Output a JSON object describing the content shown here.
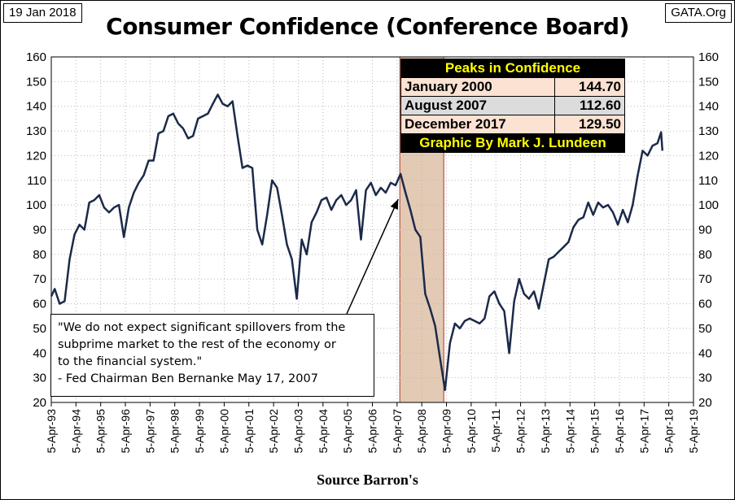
{
  "header": {
    "date": "19 Jan 2018",
    "source_site": "GATA.Org"
  },
  "source_note": "Source Barron's",
  "peaks": {
    "title": "Peaks in Confidence",
    "rows": [
      {
        "label": "January 2000",
        "value": "144.70"
      },
      {
        "label": "August 2007",
        "value": "112.60"
      },
      {
        "label": "December 2017",
        "value": "129.50"
      }
    ],
    "credit": "Graphic By Mark J. Lundeen"
  },
  "quote": {
    "lines": [
      "\"We do not expect significant spillovers from the",
      "subprime market to the rest of the economy or",
      "to the financial system.\""
    ],
    "attribution": "- Fed Chairman Ben Bernanke  May 17, 2007"
  },
  "colors": {
    "line": "#1b2a49",
    "highlight_fill": "#d8b89c",
    "highlight_border": "#b03a2e",
    "grid": "#b7b7b7"
  },
  "chart_data": {
    "type": "line",
    "title": "Consumer Confidence (Conference Board)",
    "xlabel": "",
    "ylabel": "",
    "ylim": [
      20,
      160
    ],
    "yticks": [
      20,
      30,
      40,
      50,
      60,
      70,
      80,
      90,
      100,
      110,
      120,
      130,
      140,
      150,
      160
    ],
    "xlim": [
      1993.26,
      2019.26
    ],
    "xtick_labels": [
      "5-Apr-93",
      "5-Apr-94",
      "5-Apr-95",
      "5-Apr-96",
      "5-Apr-97",
      "5-Apr-98",
      "5-Apr-99",
      "5-Apr-00",
      "5-Apr-01",
      "5-Apr-02",
      "5-Apr-03",
      "5-Apr-04",
      "5-Apr-05",
      "5-Apr-06",
      "5-Apr-07",
      "5-Apr-08",
      "5-Apr-09",
      "5-Apr-10",
      "5-Apr-11",
      "5-Apr-12",
      "5-Apr-13",
      "5-Apr-14",
      "5-Apr-15",
      "5-Apr-16",
      "5-Apr-17",
      "5-Apr-18",
      "5-Apr-19"
    ],
    "grid": true,
    "highlight_span": [
      2007.37,
      2009.15
    ],
    "annotation_point": [
      2007.37,
      103
    ],
    "series": [
      {
        "x": [
          1993.26,
          1993.4,
          1993.6,
          1993.8,
          1994.0,
          1994.2,
          1994.4,
          1994.6,
          1994.8,
          1995.0,
          1995.2,
          1995.4,
          1995.6,
          1995.8,
          1996.0,
          1996.2,
          1996.4,
          1996.6,
          1996.8,
          1997.0,
          1997.2,
          1997.4,
          1997.6,
          1997.8,
          1998.0,
          1998.2,
          1998.4,
          1998.6,
          1998.8,
          1999.0,
          1999.2,
          1999.4,
          1999.6,
          1999.8,
          2000.0,
          2000.2,
          2000.4,
          2000.6,
          2000.8,
          2001.0,
          2001.2,
          2001.4,
          2001.6,
          2001.8,
          2002.0,
          2002.2,
          2002.4,
          2002.6,
          2002.8,
          2003.0,
          2003.2,
          2003.4,
          2003.6,
          2003.8,
          2004.0,
          2004.2,
          2004.4,
          2004.6,
          2004.8,
          2005.0,
          2005.2,
          2005.4,
          2005.6,
          2005.8,
          2006.0,
          2006.2,
          2006.4,
          2006.6,
          2006.8,
          2007.0,
          2007.2,
          2007.4,
          2007.6,
          2007.8,
          2008.0,
          2008.2,
          2008.4,
          2008.6,
          2008.8,
          2009.0,
          2009.2,
          2009.4,
          2009.6,
          2009.8,
          2010.0,
          2010.2,
          2010.4,
          2010.6,
          2010.8,
          2011.0,
          2011.2,
          2011.4,
          2011.6,
          2011.8,
          2012.0,
          2012.2,
          2012.4,
          2012.6,
          2012.8,
          2013.0,
          2013.2,
          2013.4,
          2013.6,
          2013.8,
          2014.0,
          2014.2,
          2014.4,
          2014.6,
          2014.8,
          2015.0,
          2015.2,
          2015.4,
          2015.6,
          2015.8,
          2016.0,
          2016.2,
          2016.4,
          2016.6,
          2016.8,
          2017.0,
          2017.2,
          2017.4,
          2017.6,
          2017.8,
          2017.95,
          2018.0
        ],
        "y": [
          63,
          66,
          60,
          61,
          78,
          88,
          92,
          90,
          101,
          102,
          104,
          99,
          97,
          99,
          100,
          87,
          99,
          105,
          109,
          112,
          118,
          118,
          129,
          130,
          136,
          137,
          133,
          131,
          127,
          128,
          135,
          136,
          137,
          141,
          144.7,
          141,
          140,
          142,
          128,
          115,
          116,
          115,
          90,
          84,
          96,
          110,
          107,
          96,
          84,
          78,
          62,
          86,
          80,
          93,
          97,
          102,
          103,
          98,
          102,
          104,
          100,
          102,
          106,
          86,
          106,
          109,
          104,
          107,
          105,
          109,
          108,
          112.6,
          105,
          98,
          90,
          87,
          64,
          58,
          51,
          38,
          25,
          44,
          52,
          50,
          53,
          54,
          53,
          52,
          54,
          63,
          65,
          60,
          57,
          40,
          61,
          70,
          64,
          62,
          65,
          58,
          68,
          78,
          79,
          81,
          83,
          85,
          91,
          94,
          95,
          101,
          96,
          101,
          99,
          100,
          97,
          92,
          98,
          93,
          100,
          112,
          122,
          120,
          124,
          125,
          129.5,
          122
        ]
      }
    ]
  }
}
